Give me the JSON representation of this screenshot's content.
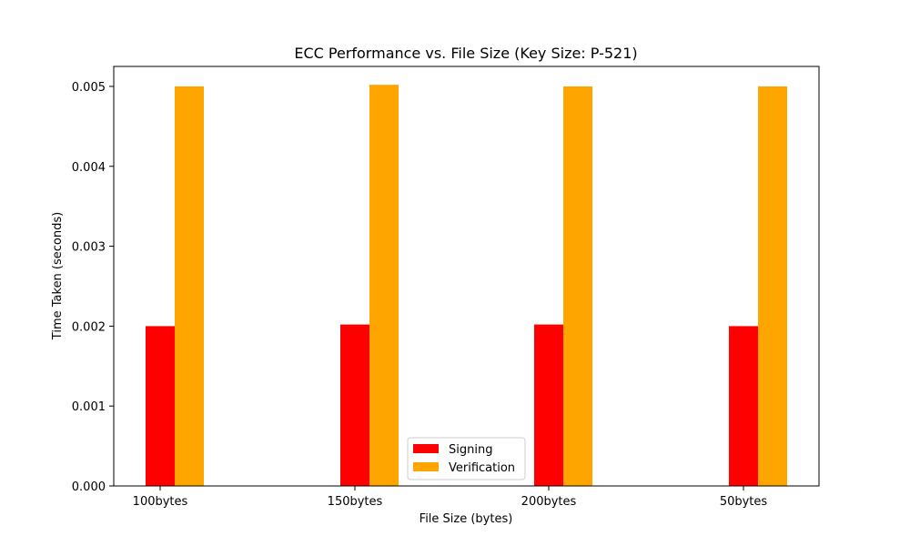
{
  "chart_data": {
    "type": "bar",
    "title": "ECC Performance vs. File Size (Key Size: P-521)",
    "xlabel": "File Size (bytes)",
    "ylabel": "Time Taken (seconds)",
    "categories": [
      "100bytes",
      "150bytes",
      "200bytes",
      "50bytes"
    ],
    "series": [
      {
        "name": "Signing",
        "color": "#ff0000",
        "values": [
          0.002,
          0.00202,
          0.00202,
          0.002
        ]
      },
      {
        "name": "Verification",
        "color": "#ffa500",
        "values": [
          0.005,
          0.00502,
          0.005,
          0.005
        ]
      }
    ],
    "ylim": [
      0,
      0.00525
    ],
    "yticks": [
      "0.000",
      "0.001",
      "0.002",
      "0.003",
      "0.004",
      "0.005"
    ],
    "ytick_values": [
      0,
      0.001,
      0.002,
      0.003,
      0.004,
      0.005
    ],
    "grid": false,
    "legend_position": "bottom-center"
  }
}
